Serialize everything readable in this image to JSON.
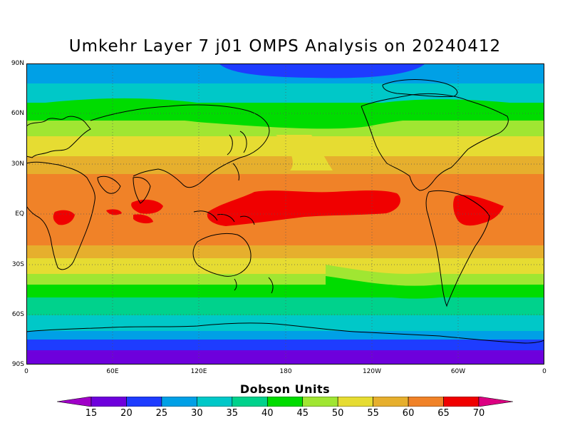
{
  "title": "Umkehr Layer 7 j01 OMPS Analysis on 20240412",
  "map": {
    "lat_ticks": [
      "90N",
      "60N",
      "30N",
      "EQ",
      "30S",
      "60S",
      "90S"
    ],
    "lon_ticks": [
      "0",
      "60E",
      "120E",
      "180",
      "120W",
      "60W",
      "0"
    ],
    "grid": "dotted"
  },
  "colorbar": {
    "title": "Dobson Units",
    "labels": [
      "15",
      "20",
      "25",
      "30",
      "35",
      "40",
      "45",
      "50",
      "55",
      "60",
      "65",
      "70"
    ],
    "colors": [
      "#a000c8",
      "#6e00dc",
      "#1e3cff",
      "#00a0e6",
      "#00c8c8",
      "#00d28c",
      "#00dc00",
      "#a0e632",
      "#e6dc32",
      "#e6af2d",
      "#f08228",
      "#f00000",
      "#dc0082"
    ]
  }
}
